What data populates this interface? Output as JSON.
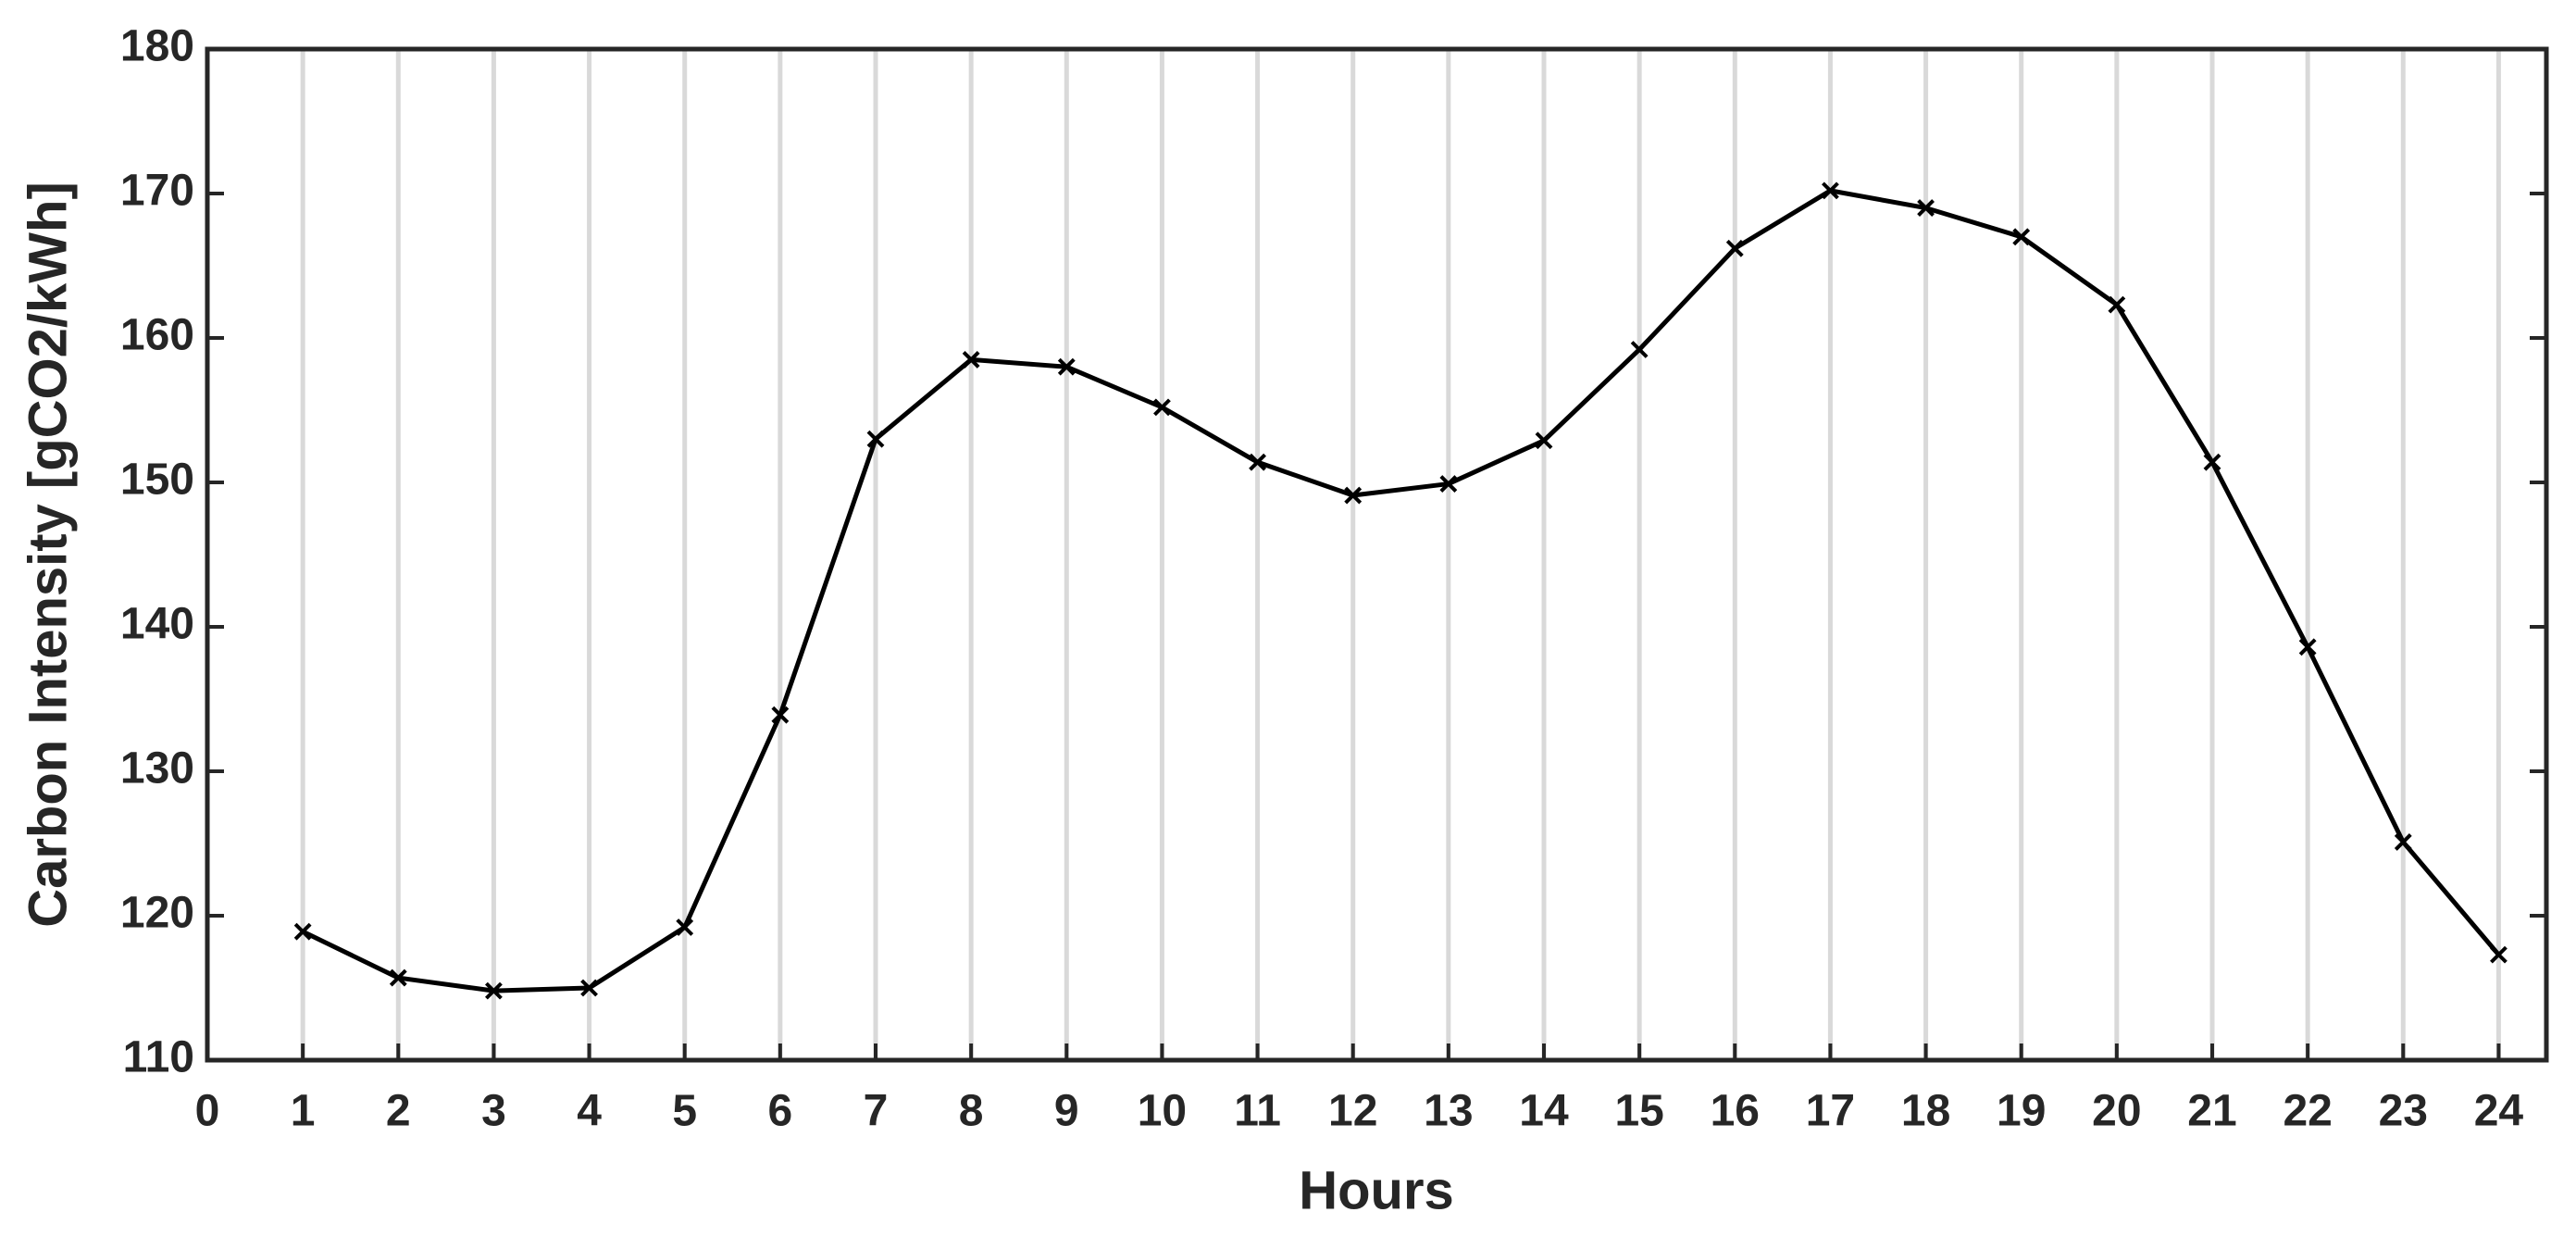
{
  "chart_data": {
    "type": "line",
    "x_label": "Hours",
    "y_label": "Carbon Intensity [gCO2/kWh]",
    "x": [
      1,
      2,
      3,
      4,
      5,
      6,
      7,
      8,
      9,
      10,
      11,
      12,
      13,
      14,
      15,
      16,
      17,
      18,
      19,
      20,
      21,
      22,
      23,
      24
    ],
    "series": [
      {
        "color": "#000000",
        "marker": "x",
        "values": [
          118.9,
          115.7,
          114.8,
          115.0,
          119.2,
          133.9,
          153.0,
          158.5,
          158.0,
          155.2,
          151.4,
          149.1,
          149.9,
          152.9,
          159.2,
          166.2,
          170.2,
          169.0,
          167.0,
          162.3,
          151.4,
          138.6,
          125.1,
          117.3
        ]
      }
    ],
    "xlim": [
      0,
      24.5
    ],
    "ylim": [
      110,
      180
    ],
    "xticks": [
      0,
      1,
      2,
      3,
      4,
      5,
      6,
      7,
      8,
      9,
      10,
      11,
      12,
      13,
      14,
      15,
      16,
      17,
      18,
      19,
      20,
      21,
      22,
      23,
      24
    ],
    "yticks": [
      110,
      120,
      130,
      140,
      150,
      160,
      170,
      180
    ],
    "grid": "x",
    "grid_color": "#d9d9d9"
  }
}
